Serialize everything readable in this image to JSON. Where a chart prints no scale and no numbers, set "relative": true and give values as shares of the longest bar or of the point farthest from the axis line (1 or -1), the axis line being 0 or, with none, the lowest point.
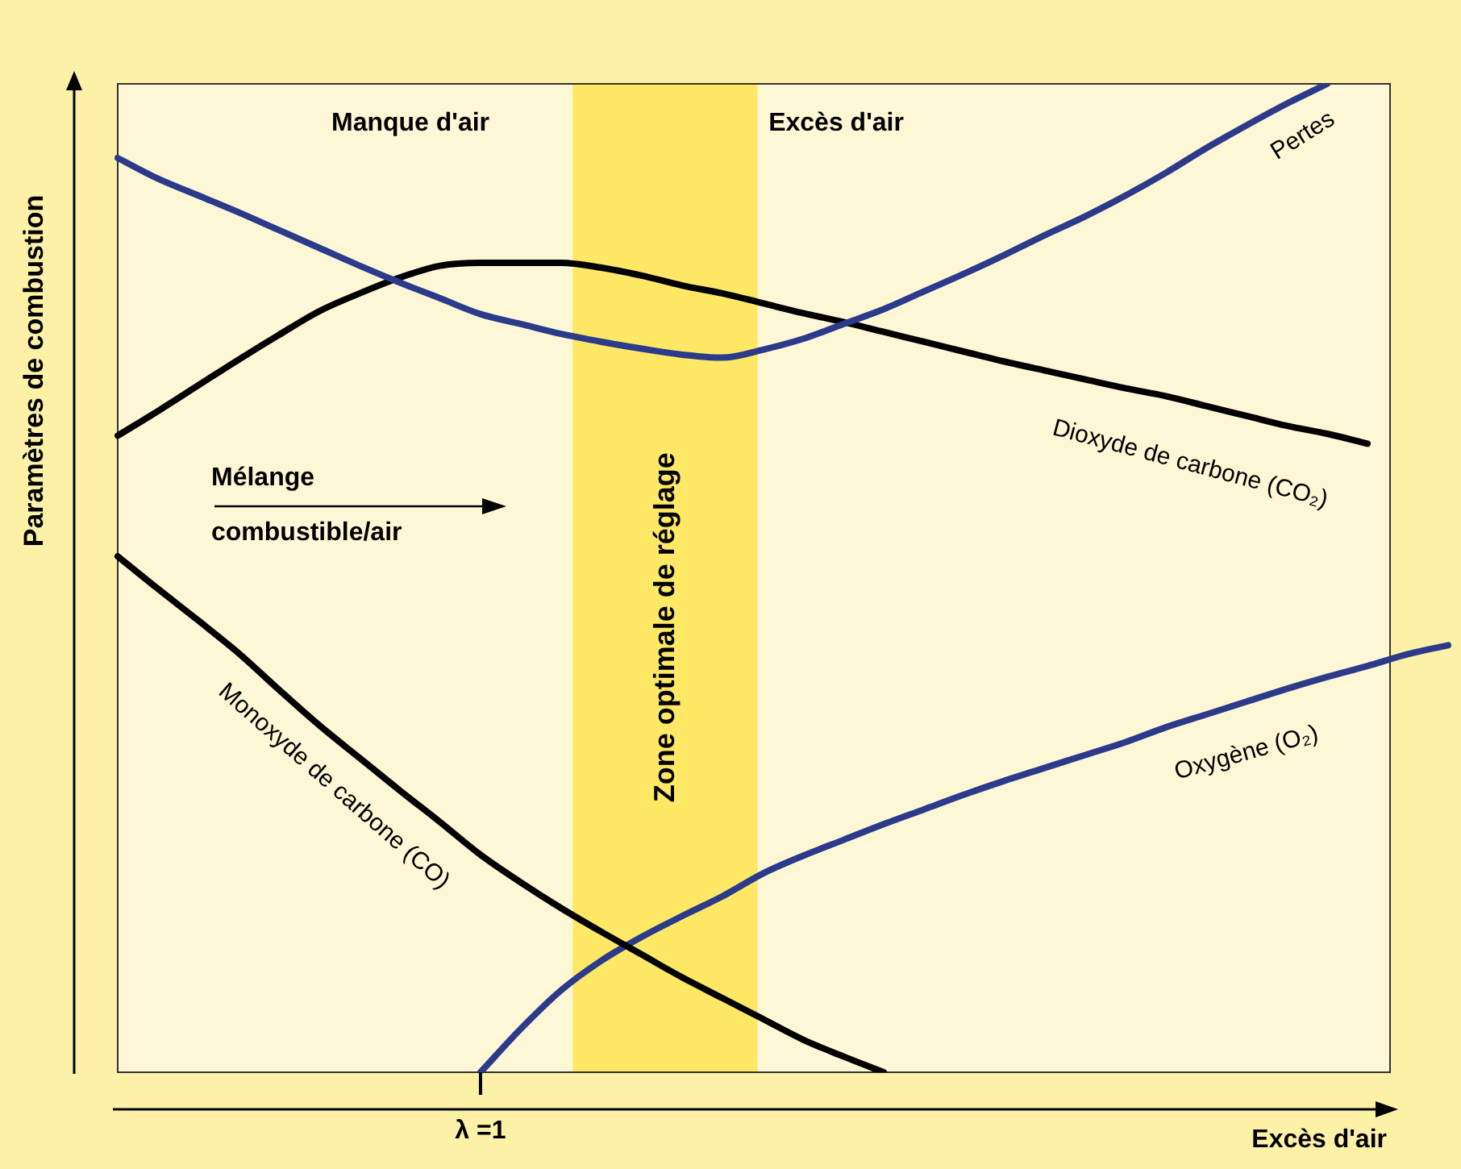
{
  "chart_data": {
    "type": "line",
    "relative": true,
    "ylabel": "Paramètres de combustion",
    "xlabel": "Excès d'air",
    "categories": [
      null,
      null,
      null,
      null,
      null,
      null,
      null,
      null,
      null,
      null,
      null,
      null,
      null,
      null,
      null,
      null,
      null,
      null,
      null,
      null,
      null,
      null,
      null,
      null,
      null,
      null,
      null,
      null,
      null,
      null,
      null,
      null,
      null,
      null
    ],
    "series": [
      {
        "name": "Pertes",
        "color": "#2b3a8a",
        "values": [
          0.925,
          0.904,
          0.887,
          0.87,
          0.852,
          0.834,
          0.816,
          0.799,
          0.783,
          0.767,
          0.757,
          0.747,
          0.739,
          0.732,
          0.726,
          0.723,
          0.731,
          0.742,
          0.757,
          0.772,
          0.79,
          0.808,
          0.827,
          0.847,
          0.866,
          0.887,
          0.91,
          0.935,
          0.958,
          0.98,
          1.0,
          null,
          null,
          null
        ]
      },
      {
        "name": "Dioxyde de carbone (CO₂)",
        "color": "#000000",
        "values": [
          0.644,
          0.669,
          0.695,
          0.721,
          0.746,
          0.77,
          0.788,
          0.804,
          0.816,
          0.819,
          0.819,
          0.819,
          0.814,
          0.806,
          0.796,
          0.788,
          0.778,
          0.768,
          0.759,
          0.749,
          0.739,
          0.729,
          0.719,
          0.71,
          0.701,
          0.692,
          0.684,
          0.674,
          0.664,
          0.654,
          0.646,
          0.636,
          null,
          null
        ]
      },
      {
        "name": "Monoxyde de carbone (CO)",
        "color": "#000000",
        "values": [
          0.522,
          0.489,
          0.457,
          0.424,
          0.387,
          0.351,
          0.318,
          0.285,
          0.253,
          0.22,
          0.192,
          0.166,
          0.142,
          0.119,
          0.096,
          0.075,
          0.054,
          0.033,
          0.016,
          0.0,
          null,
          null,
          null,
          null,
          null,
          null,
          null,
          null,
          null,
          null,
          null,
          null,
          null,
          null
        ]
      },
      {
        "name": "Oxygène (O₂)",
        "color": "#2b3a8a",
        "values": [
          null,
          null,
          null,
          null,
          null,
          null,
          null,
          null,
          null,
          0.0,
          0.044,
          0.083,
          0.113,
          0.137,
          0.158,
          0.178,
          0.201,
          0.219,
          0.235,
          0.251,
          0.266,
          0.281,
          0.295,
          0.308,
          0.321,
          0.334,
          0.349,
          0.362,
          0.375,
          0.388,
          0.4,
          0.411,
          0.423,
          0.432
        ]
      }
    ],
    "annotations": [
      "Manque d'air",
      "Excès d'air",
      "Mélange combustible/air",
      "λ =1",
      "Zone optimale de réglage"
    ],
    "grid": false,
    "legend": false,
    "marker": "none",
    "line_style": "solid"
  }
}
